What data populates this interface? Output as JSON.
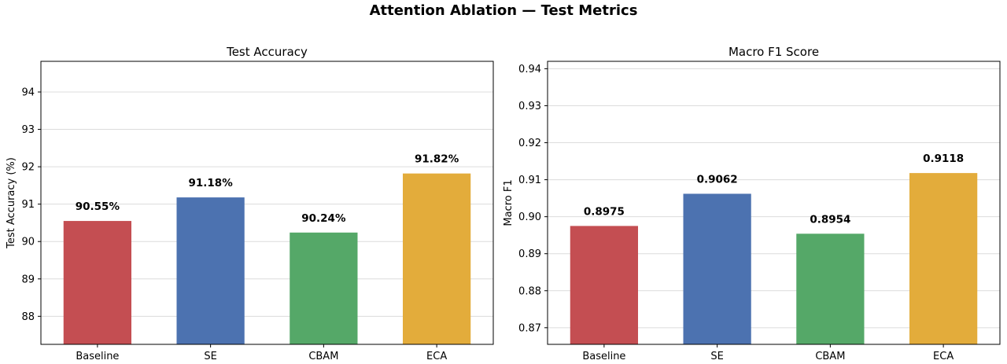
{
  "figure_title": "Attention Ablation — Test Metrics",
  "chart_data": [
    {
      "type": "bar",
      "title": "Test Accuracy",
      "xlabel": "",
      "ylabel": "Test Accuracy (%)",
      "categories": [
        "Baseline",
        "SE",
        "CBAM",
        "ECA"
      ],
      "values": [
        90.55,
        91.18,
        90.24,
        91.82
      ],
      "data_labels": [
        "90.55%",
        "91.18%",
        "90.24%",
        "91.82%"
      ],
      "colors": [
        "#c44e52",
        "#4c72b0",
        "#55a868",
        "#e3ac3b"
      ],
      "ylim": [
        87.25,
        94.82
      ],
      "yticks": [
        88,
        89,
        90,
        91,
        92,
        93,
        94
      ],
      "ytick_labels": [
        "88",
        "89",
        "90",
        "91",
        "92",
        "93",
        "94"
      ],
      "grid": "y"
    },
    {
      "type": "bar",
      "title": "Macro F1 Score",
      "xlabel": "",
      "ylabel": "Macro F1",
      "categories": [
        "Baseline",
        "SE",
        "CBAM",
        "ECA"
      ],
      "values": [
        0.8975,
        0.9062,
        0.8954,
        0.9118
      ],
      "data_labels": [
        "0.8975",
        "0.9062",
        "0.8954",
        "0.9118"
      ],
      "colors": [
        "#c44e52",
        "#4c72b0",
        "#55a868",
        "#e3ac3b"
      ],
      "ylim": [
        0.8655,
        0.942
      ],
      "yticks": [
        0.87,
        0.88,
        0.89,
        0.9,
        0.91,
        0.92,
        0.93,
        0.94
      ],
      "ytick_labels": [
        "0.87",
        "0.88",
        "0.89",
        "0.90",
        "0.91",
        "0.92",
        "0.93",
        "0.94"
      ],
      "grid": "y"
    }
  ]
}
